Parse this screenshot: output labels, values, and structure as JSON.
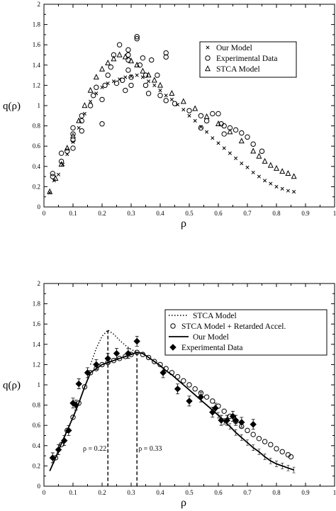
{
  "chart_data": [
    {
      "type": "scatter",
      "xlabel": "ρ",
      "ylabel": "q(ρ)",
      "xlim": [
        0,
        1
      ],
      "ylim": [
        0,
        2
      ],
      "xticks": [
        "0",
        "0.1",
        "0.2",
        "0.3",
        "0.4",
        "0.5",
        "0.6",
        "0.7",
        "0.8",
        "0.9",
        "1"
      ],
      "yticks": [
        "0",
        "0.2",
        "0.4",
        "0.6",
        "0.8",
        "1",
        "1.2",
        "1.4",
        "1.6",
        "1.8",
        "2"
      ],
      "grid": false,
      "legend_position": "top-right",
      "series": [
        {
          "name": "Our Model",
          "marker": "x",
          "points": [
            [
              0.02,
              0.14
            ],
            [
              0.035,
              0.26
            ],
            [
              0.05,
              0.32
            ],
            [
              0.065,
              0.42
            ],
            [
              0.08,
              0.52
            ],
            [
              0.1,
              0.64
            ],
            [
              0.12,
              0.78
            ],
            [
              0.14,
              0.92
            ],
            [
              0.16,
              1.04
            ],
            [
              0.18,
              1.12
            ],
            [
              0.2,
              1.18
            ],
            [
              0.22,
              1.22
            ],
            [
              0.24,
              1.24
            ],
            [
              0.26,
              1.26
            ],
            [
              0.28,
              1.28
            ],
            [
              0.3,
              1.29
            ],
            [
              0.32,
              1.3
            ],
            [
              0.34,
              1.28
            ],
            [
              0.36,
              1.24
            ],
            [
              0.38,
              1.2
            ],
            [
              0.4,
              1.15
            ],
            [
              0.42,
              1.1
            ],
            [
              0.44,
              1.06
            ],
            [
              0.46,
              1.01
            ],
            [
              0.48,
              0.96
            ],
            [
              0.5,
              0.9
            ],
            [
              0.52,
              0.85
            ],
            [
              0.54,
              0.79
            ],
            [
              0.56,
              0.74
            ],
            [
              0.58,
              0.68
            ],
            [
              0.6,
              0.63
            ],
            [
              0.62,
              0.58
            ],
            [
              0.64,
              0.53
            ],
            [
              0.66,
              0.48
            ],
            [
              0.68,
              0.43
            ],
            [
              0.7,
              0.39
            ],
            [
              0.72,
              0.34
            ],
            [
              0.74,
              0.3
            ],
            [
              0.76,
              0.26
            ],
            [
              0.78,
              0.23
            ],
            [
              0.8,
              0.2
            ],
            [
              0.82,
              0.18
            ],
            [
              0.84,
              0.16
            ],
            [
              0.86,
              0.15
            ]
          ]
        },
        {
          "name": "Experimental Data",
          "marker": "circle",
          "points": [
            [
              0.03,
              0.3
            ],
            [
              0.03,
              0.33
            ],
            [
              0.06,
              0.45
            ],
            [
              0.06,
              0.53
            ],
            [
              0.08,
              0.55
            ],
            [
              0.1,
              0.58
            ],
            [
              0.1,
              0.66
            ],
            [
              0.1,
              0.72
            ],
            [
              0.1,
              0.78
            ],
            [
              0.13,
              0.75
            ],
            [
              0.13,
              0.85
            ],
            [
              0.13,
              0.9
            ],
            [
              0.16,
              1.0
            ],
            [
              0.17,
              1.1
            ],
            [
              0.18,
              1.18
            ],
            [
              0.2,
              0.82
            ],
            [
              0.2,
              1.06
            ],
            [
              0.21,
              1.2
            ],
            [
              0.22,
              1.3
            ],
            [
              0.23,
              1.38
            ],
            [
              0.24,
              1.5
            ],
            [
              0.25,
              1.22
            ],
            [
              0.26,
              1.6
            ],
            [
              0.27,
              1.25
            ],
            [
              0.28,
              1.15
            ],
            [
              0.29,
              1.35
            ],
            [
              0.29,
              1.45
            ],
            [
              0.29,
              1.5
            ],
            [
              0.29,
              1.55
            ],
            [
              0.3,
              1.2
            ],
            [
              0.3,
              1.28
            ],
            [
              0.32,
              1.66
            ],
            [
              0.32,
              1.68
            ],
            [
              0.33,
              1.4
            ],
            [
              0.34,
              1.47
            ],
            [
              0.35,
              1.2
            ],
            [
              0.35,
              1.3
            ],
            [
              0.36,
              1.12
            ],
            [
              0.37,
              1.45
            ],
            [
              0.39,
              1.3
            ],
            [
              0.4,
              1.1
            ],
            [
              0.42,
              1.48
            ],
            [
              0.42,
              1.52
            ],
            [
              0.42,
              1.05
            ],
            [
              0.45,
              1.02
            ],
            [
              0.5,
              0.95
            ],
            [
              0.54,
              0.9
            ],
            [
              0.54,
              0.78
            ],
            [
              0.56,
              0.85
            ],
            [
              0.58,
              0.92
            ],
            [
              0.6,
              0.92
            ],
            [
              0.61,
              0.82
            ],
            [
              0.62,
              0.8
            ],
            [
              0.62,
              0.72
            ],
            [
              0.64,
              0.78
            ],
            [
              0.66,
              0.76
            ],
            [
              0.68,
              0.73
            ],
            [
              0.7,
              0.69
            ],
            [
              0.72,
              0.62
            ],
            [
              0.75,
              0.55
            ]
          ]
        },
        {
          "name": "STCA Model",
          "marker": "triangle",
          "points": [
            [
              0.02,
              0.15
            ],
            [
              0.04,
              0.28
            ],
            [
              0.06,
              0.42
            ],
            [
              0.08,
              0.58
            ],
            [
              0.1,
              0.7
            ],
            [
              0.12,
              0.85
            ],
            [
              0.14,
              1.0
            ],
            [
              0.16,
              1.15
            ],
            [
              0.18,
              1.28
            ],
            [
              0.2,
              1.36
            ],
            [
              0.22,
              1.42
            ],
            [
              0.24,
              1.46
            ],
            [
              0.26,
              1.5
            ],
            [
              0.28,
              1.48
            ],
            [
              0.3,
              1.44
            ],
            [
              0.32,
              1.4
            ],
            [
              0.34,
              1.34
            ],
            [
              0.36,
              1.3
            ],
            [
              0.38,
              1.25
            ],
            [
              0.4,
              1.2
            ],
            [
              0.44,
              1.12
            ],
            [
              0.48,
              1.04
            ],
            [
              0.52,
              0.97
            ],
            [
              0.56,
              0.89
            ],
            [
              0.6,
              0.82
            ],
            [
              0.64,
              0.74
            ],
            [
              0.68,
              0.65
            ],
            [
              0.72,
              0.55
            ],
            [
              0.74,
              0.5
            ],
            [
              0.76,
              0.45
            ],
            [
              0.78,
              0.41
            ],
            [
              0.8,
              0.38
            ],
            [
              0.82,
              0.35
            ],
            [
              0.84,
              0.33
            ],
            [
              0.86,
              0.3
            ]
          ]
        }
      ]
    },
    {
      "type": "line",
      "xlabel": "ρ",
      "ylabel": "q(ρ)",
      "xlim": [
        0,
        1
      ],
      "ylim": [
        0,
        2
      ],
      "xticks": [
        "0",
        "0.1",
        "0.2",
        "0.3",
        "0.4",
        "0.5",
        "0.6",
        "0.7",
        "0.8",
        "0.9",
        "1"
      ],
      "yticks": [
        "0",
        "0.2",
        "0.4",
        "0.6",
        "0.8",
        "1",
        "1.2",
        "1.4",
        "1.6",
        "1.8",
        "2"
      ],
      "grid": false,
      "legend_position": "top-right",
      "annotations": [
        {
          "text": "ρ = 0.22",
          "x": 0.22
        },
        {
          "text": "ρ = 0.33",
          "x": 0.32
        }
      ],
      "series": [
        {
          "name": "STCA Model",
          "style": "dotted",
          "points": [
            [
              0.16,
              1.2
            ],
            [
              0.18,
              1.36
            ],
            [
              0.2,
              1.48
            ],
            [
              0.22,
              1.54
            ],
            [
              0.24,
              1.5
            ],
            [
              0.26,
              1.44
            ],
            [
              0.28,
              1.39
            ],
            [
              0.3,
              1.35
            ],
            [
              0.32,
              1.32
            ]
          ]
        },
        {
          "name": "STCA Model + Retarded Accel.",
          "marker": "circle",
          "points": [
            [
              0.04,
              0.28
            ],
            [
              0.06,
              0.41
            ],
            [
              0.08,
              0.55
            ],
            [
              0.1,
              0.68
            ],
            [
              0.12,
              0.82
            ],
            [
              0.14,
              0.98
            ],
            [
              0.16,
              1.12
            ],
            [
              0.18,
              1.16
            ],
            [
              0.2,
              1.2
            ],
            [
              0.22,
              1.22
            ],
            [
              0.24,
              1.24
            ],
            [
              0.26,
              1.26
            ],
            [
              0.28,
              1.28
            ],
            [
              0.3,
              1.3
            ],
            [
              0.32,
              1.32
            ],
            [
              0.34,
              1.3
            ],
            [
              0.36,
              1.27
            ],
            [
              0.38,
              1.23
            ],
            [
              0.4,
              1.2
            ],
            [
              0.42,
              1.16
            ],
            [
              0.44,
              1.12
            ],
            [
              0.46,
              1.08
            ],
            [
              0.48,
              1.04
            ],
            [
              0.5,
              1.0
            ],
            [
              0.52,
              0.96
            ],
            [
              0.54,
              0.92
            ],
            [
              0.56,
              0.88
            ],
            [
              0.58,
              0.84
            ],
            [
              0.6,
              0.79
            ],
            [
              0.62,
              0.74
            ],
            [
              0.64,
              0.69
            ],
            [
              0.66,
              0.64
            ],
            [
              0.68,
              0.59
            ],
            [
              0.7,
              0.55
            ],
            [
              0.72,
              0.51
            ],
            [
              0.74,
              0.47
            ],
            [
              0.76,
              0.44
            ],
            [
              0.78,
              0.41
            ],
            [
              0.8,
              0.37
            ],
            [
              0.82,
              0.34
            ],
            [
              0.84,
              0.31
            ],
            [
              0.85,
              0.29
            ]
          ]
        },
        {
          "name": "Our Model",
          "style": "solid",
          "points": [
            [
              0.02,
              0.15
            ],
            [
              0.04,
              0.28
            ],
            [
              0.06,
              0.42
            ],
            [
              0.08,
              0.55
            ],
            [
              0.1,
              0.68
            ],
            [
              0.12,
              0.82
            ],
            [
              0.14,
              0.98
            ],
            [
              0.16,
              1.12
            ],
            [
              0.18,
              1.16
            ],
            [
              0.2,
              1.2
            ],
            [
              0.22,
              1.22
            ],
            [
              0.24,
              1.24
            ],
            [
              0.26,
              1.26
            ],
            [
              0.28,
              1.28
            ],
            [
              0.3,
              1.3
            ],
            [
              0.32,
              1.32
            ],
            [
              0.34,
              1.31
            ],
            [
              0.36,
              1.27
            ],
            [
              0.38,
              1.23
            ],
            [
              0.4,
              1.19
            ],
            [
              0.42,
              1.14
            ],
            [
              0.44,
              1.1
            ],
            [
              0.46,
              1.05
            ],
            [
              0.48,
              1.0
            ],
            [
              0.5,
              0.95
            ],
            [
              0.52,
              0.9
            ],
            [
              0.54,
              0.85
            ],
            [
              0.56,
              0.8
            ],
            [
              0.58,
              0.75
            ],
            [
              0.6,
              0.7
            ],
            [
              0.62,
              0.64
            ],
            [
              0.64,
              0.59
            ],
            [
              0.66,
              0.53
            ],
            [
              0.68,
              0.48
            ],
            [
              0.7,
              0.43
            ],
            [
              0.72,
              0.38
            ],
            [
              0.74,
              0.34
            ],
            [
              0.76,
              0.29
            ],
            [
              0.78,
              0.25
            ],
            [
              0.8,
              0.22
            ],
            [
              0.82,
              0.2
            ],
            [
              0.84,
              0.18
            ],
            [
              0.86,
              0.16
            ]
          ]
        },
        {
          "name": "Experimental Data",
          "marker": "diamond",
          "points": [
            [
              0.03,
              0.28
            ],
            [
              0.05,
              0.36
            ],
            [
              0.07,
              0.45
            ],
            [
              0.085,
              0.55
            ],
            [
              0.1,
              0.82
            ],
            [
              0.11,
              0.8
            ],
            [
              0.12,
              1.01
            ],
            [
              0.15,
              1.12
            ],
            [
              0.18,
              1.2
            ],
            [
              0.22,
              1.26
            ],
            [
              0.25,
              1.31
            ],
            [
              0.29,
              1.31
            ],
            [
              0.32,
              1.43
            ],
            [
              0.41,
              1.12
            ],
            [
              0.46,
              0.96
            ],
            [
              0.5,
              0.84
            ],
            [
              0.54,
              0.88
            ],
            [
              0.58,
              0.73
            ],
            [
              0.59,
              0.77
            ],
            [
              0.61,
              0.65
            ],
            [
              0.63,
              0.65
            ],
            [
              0.65,
              0.69
            ],
            [
              0.66,
              0.65
            ],
            [
              0.68,
              0.63
            ],
            [
              0.72,
              0.61
            ]
          ]
        }
      ]
    }
  ]
}
